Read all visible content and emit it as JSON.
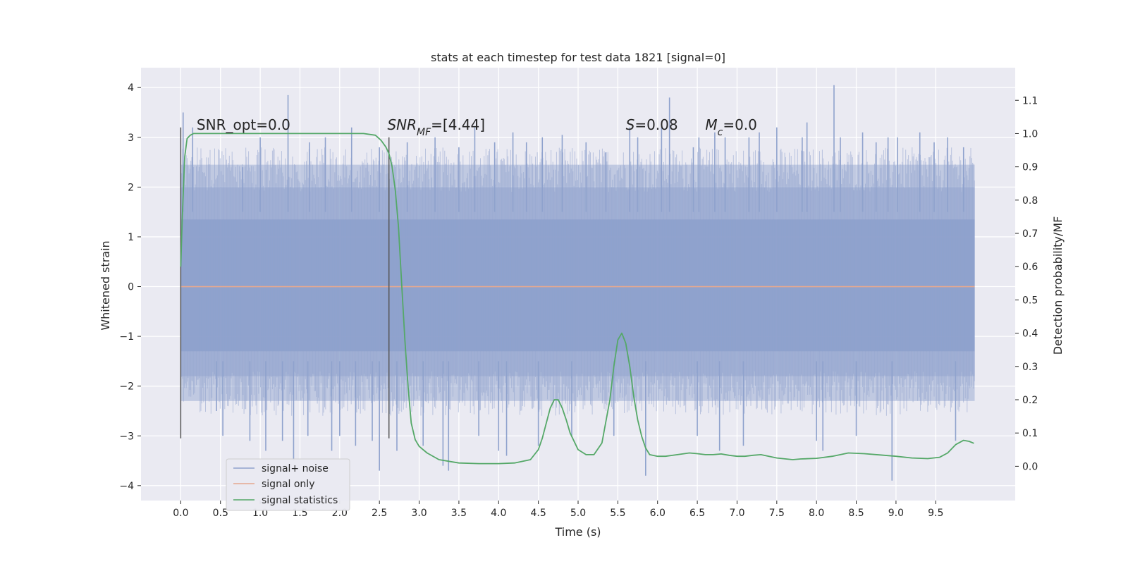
{
  "chart_data": {
    "type": "line",
    "title": "stats at each timestep for test data 1821 [signal=0]",
    "xlabel": "Time (s)",
    "ylabel": "Whitened strain",
    "y2label": "Detection probability/MF",
    "xlim": [
      -0.5,
      10.5
    ],
    "ylim": [
      -4.3,
      4.4
    ],
    "y2lim": [
      -0.103,
      1.198
    ],
    "xticks": [
      0.0,
      0.5,
      1.0,
      1.5,
      2.0,
      2.5,
      3.0,
      3.5,
      4.0,
      4.5,
      5.0,
      5.5,
      6.0,
      6.5,
      7.0,
      7.5,
      8.0,
      8.5,
      9.0,
      9.5
    ],
    "xtick_labels": [
      "0.0",
      "0.5",
      "1.0",
      "1.5",
      "2.0",
      "2.5",
      "3.0",
      "3.5",
      "4.0",
      "4.5",
      "5.0",
      "5.5",
      "6.0",
      "6.5",
      "7.0",
      "7.5",
      "8.0",
      "8.5",
      "9.0",
      "9.5"
    ],
    "yticks": [
      4,
      3,
      2,
      1,
      0,
      -1,
      -2,
      -3,
      -4
    ],
    "ytick_labels": [
      "4",
      "3",
      "2",
      "1",
      "0",
      "−1",
      "−2",
      "−3",
      "−4"
    ],
    "y2ticks": [
      1.1,
      1.0,
      0.9,
      0.8,
      0.7,
      0.6,
      0.5,
      0.4,
      0.3,
      0.2,
      0.1,
      0.0
    ],
    "y2tick_labels": [
      "1.1",
      "1.0",
      "0.9",
      "0.8",
      "0.7",
      "0.6",
      "0.5",
      "0.4",
      "0.3",
      "0.2",
      "0.1",
      "0.0"
    ],
    "grid": true,
    "legend_position": "lower-left",
    "series": [
      {
        "name": "signal+ noise",
        "axis": "left",
        "color": "#8fa2cd",
        "x_range": [
          0.0,
          9.99
        ],
        "envelope_bands": [
          {
            "lo": -1.3,
            "hi": 1.35
          },
          {
            "lo": -1.8,
            "hi": 2.0
          },
          {
            "lo": -2.3,
            "hi": 2.45
          }
        ],
        "extreme_spikes": [
          {
            "x": 0.03,
            "y": 3.5
          },
          {
            "x": 0.15,
            "y": 3.2
          },
          {
            "x": 0.45,
            "y": -2.5
          },
          {
            "x": 0.53,
            "y": -3.0
          },
          {
            "x": 0.78,
            "y": 2.4
          },
          {
            "x": 0.87,
            "y": -3.1
          },
          {
            "x": 1.0,
            "y": 3.0
          },
          {
            "x": 1.07,
            "y": -3.3
          },
          {
            "x": 1.28,
            "y": -3.1
          },
          {
            "x": 1.35,
            "y": 3.85
          },
          {
            "x": 1.42,
            "y": -3.5
          },
          {
            "x": 1.6,
            "y": -3.0
          },
          {
            "x": 1.62,
            "y": 2.9
          },
          {
            "x": 1.82,
            "y": 3.0
          },
          {
            "x": 1.9,
            "y": -3.3
          },
          {
            "x": 2.0,
            "y": -3.0
          },
          {
            "x": 2.15,
            "y": 3.2
          },
          {
            "x": 2.2,
            "y": -3.2
          },
          {
            "x": 2.41,
            "y": -3.1
          },
          {
            "x": 2.5,
            "y": 2.8
          },
          {
            "x": 2.5,
            "y": -3.7
          },
          {
            "x": 2.62,
            "y": 2.7
          },
          {
            "x": 2.72,
            "y": -3.3
          },
          {
            "x": 2.85,
            "y": 2.9
          },
          {
            "x": 3.05,
            "y": -3.2
          },
          {
            "x": 3.2,
            "y": 3.0
          },
          {
            "x": 3.3,
            "y": -3.6
          },
          {
            "x": 3.37,
            "y": -3.7
          },
          {
            "x": 3.5,
            "y": 2.8
          },
          {
            "x": 3.7,
            "y": 3.2
          },
          {
            "x": 3.75,
            "y": -3.0
          },
          {
            "x": 3.95,
            "y": 2.9
          },
          {
            "x": 4.0,
            "y": -3.3
          },
          {
            "x": 4.1,
            "y": -3.4
          },
          {
            "x": 4.18,
            "y": 3.1
          },
          {
            "x": 4.35,
            "y": 2.9
          },
          {
            "x": 4.5,
            "y": -3.2
          },
          {
            "x": 4.55,
            "y": 3.0
          },
          {
            "x": 4.8,
            "y": 3.05
          },
          {
            "x": 4.92,
            "y": -3.0
          },
          {
            "x": 5.1,
            "y": 2.9
          },
          {
            "x": 5.35,
            "y": 2.7
          },
          {
            "x": 5.45,
            "y": -3.0
          },
          {
            "x": 5.65,
            "y": 3.2
          },
          {
            "x": 5.75,
            "y": 3.0
          },
          {
            "x": 5.85,
            "y": -3.8
          },
          {
            "x": 6.05,
            "y": 3.2
          },
          {
            "x": 6.15,
            "y": 3.8
          },
          {
            "x": 6.45,
            "y": 2.8
          },
          {
            "x": 6.5,
            "y": -3.0
          },
          {
            "x": 6.52,
            "y": 3.0
          },
          {
            "x": 6.72,
            "y": 3.1
          },
          {
            "x": 6.78,
            "y": -3.3
          },
          {
            "x": 6.85,
            "y": 3.0
          },
          {
            "x": 7.08,
            "y": -3.2
          },
          {
            "x": 7.15,
            "y": 3.0
          },
          {
            "x": 7.28,
            "y": 3.1
          },
          {
            "x": 7.5,
            "y": 3.2
          },
          {
            "x": 7.82,
            "y": 3.0
          },
          {
            "x": 7.88,
            "y": 3.3
          },
          {
            "x": 8.0,
            "y": -3.1
          },
          {
            "x": 8.08,
            "y": -3.3
          },
          {
            "x": 8.22,
            "y": 4.05
          },
          {
            "x": 8.3,
            "y": 3.0
          },
          {
            "x": 8.5,
            "y": -3.0
          },
          {
            "x": 8.58,
            "y": 3.1
          },
          {
            "x": 8.75,
            "y": 2.9
          },
          {
            "x": 8.9,
            "y": 3.0
          },
          {
            "x": 8.95,
            "y": -3.9
          },
          {
            "x": 9.02,
            "y": 3.0
          },
          {
            "x": 9.3,
            "y": 3.1
          },
          {
            "x": 9.48,
            "y": 2.9
          },
          {
            "x": 9.65,
            "y": 3.0
          },
          {
            "x": 9.75,
            "y": -3.1
          },
          {
            "x": 9.85,
            "y": 2.8
          }
        ]
      },
      {
        "name": "signal only",
        "axis": "left",
        "color": "#e5a88f",
        "x": [
          0.0,
          9.99
        ],
        "y": [
          0.0,
          0.0
        ]
      },
      {
        "name": "signal statistics",
        "axis": "right",
        "color": "#55a868",
        "x": [
          0.0,
          0.02,
          0.05,
          0.08,
          0.12,
          0.16,
          0.2,
          0.3,
          0.5,
          1.0,
          1.5,
          2.0,
          2.3,
          2.45,
          2.52,
          2.58,
          2.62,
          2.66,
          2.7,
          2.74,
          2.78,
          2.82,
          2.86,
          2.9,
          2.95,
          3.0,
          3.1,
          3.25,
          3.5,
          3.75,
          4.0,
          4.2,
          4.4,
          4.5,
          4.55,
          4.6,
          4.65,
          4.7,
          4.75,
          4.8,
          4.85,
          4.9,
          5.0,
          5.1,
          5.2,
          5.3,
          5.4,
          5.45,
          5.5,
          5.55,
          5.6,
          5.65,
          5.7,
          5.75,
          5.8,
          5.85,
          5.9,
          6.0,
          6.1,
          6.25,
          6.4,
          6.5,
          6.6,
          6.7,
          6.8,
          6.9,
          7.0,
          7.1,
          7.2,
          7.3,
          7.5,
          7.7,
          7.8,
          8.0,
          8.2,
          8.4,
          8.6,
          8.8,
          9.0,
          9.2,
          9.4,
          9.55,
          9.65,
          9.75,
          9.85,
          9.92,
          9.98
        ],
        "y": [
          0.6,
          0.75,
          0.93,
          0.985,
          0.995,
          1.0,
          1.0,
          1.0,
          1.0,
          1.0,
          1.0,
          1.0,
          1.0,
          0.995,
          0.98,
          0.96,
          0.94,
          0.9,
          0.83,
          0.72,
          0.55,
          0.38,
          0.24,
          0.13,
          0.08,
          0.06,
          0.04,
          0.02,
          0.01,
          0.008,
          0.008,
          0.01,
          0.02,
          0.05,
          0.085,
          0.13,
          0.175,
          0.2,
          0.2,
          0.175,
          0.14,
          0.1,
          0.05,
          0.035,
          0.035,
          0.07,
          0.2,
          0.3,
          0.38,
          0.4,
          0.37,
          0.3,
          0.21,
          0.14,
          0.09,
          0.055,
          0.035,
          0.03,
          0.03,
          0.035,
          0.04,
          0.038,
          0.035,
          0.035,
          0.037,
          0.033,
          0.03,
          0.03,
          0.033,
          0.035,
          0.025,
          0.02,
          0.022,
          0.024,
          0.03,
          0.04,
          0.038,
          0.034,
          0.03,
          0.025,
          0.023,
          0.027,
          0.04,
          0.065,
          0.078,
          0.075,
          0.069
        ]
      }
    ],
    "vertical_lines": [
      {
        "x": 0.0,
        "ymin": -3.05,
        "ymax": 3.2,
        "color": "#555555"
      },
      {
        "x": 2.62,
        "ymin": -3.05,
        "ymax": 3.0,
        "color": "#555555"
      }
    ],
    "annotations": [
      {
        "parts": [
          {
            "t": "SNR_opt=0.0",
            "i": false
          }
        ],
        "x": 0.2,
        "y": 3.15
      },
      {
        "parts": [
          {
            "t": "SNR",
            "i": true
          },
          {
            "t": "MF",
            "i": true,
            "sub": true
          },
          {
            "t": "=[4.44]",
            "i": false
          }
        ],
        "x": 2.6,
        "y": 3.15
      },
      {
        "parts": [
          {
            "t": "S",
            "i": true
          },
          {
            "t": "=0.08",
            "i": false
          }
        ],
        "x": 5.6,
        "y": 3.15
      },
      {
        "parts": [
          {
            "t": "M",
            "i": true
          },
          {
            "t": "c",
            "i": true,
            "sub": true
          },
          {
            "t": "=0.0",
            "i": false
          }
        ],
        "x": 6.6,
        "y": 3.15
      }
    ]
  }
}
